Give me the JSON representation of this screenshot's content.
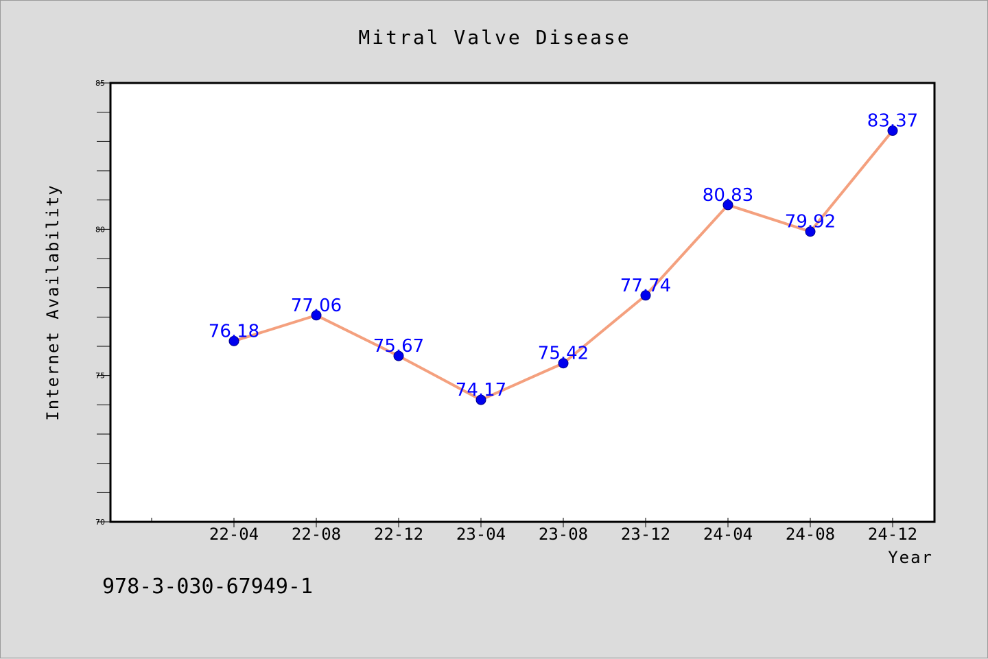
{
  "chart_data": {
    "type": "line",
    "title": "Mitral Valve Disease",
    "xlabel": "Year",
    "ylabel": "Internet Availability",
    "categories": [
      "22-04",
      "22-08",
      "22-12",
      "23-04",
      "23-08",
      "23-12",
      "24-04",
      "24-08",
      "24-12"
    ],
    "series": [
      {
        "values": [
          76.18,
          77.06,
          75.67,
          74.17,
          75.42,
          77.74,
          80.83,
          79.92,
          83.37
        ],
        "labels": [
          "76.18",
          "77.06",
          "75.67",
          "74.17",
          "75.42",
          "77.74",
          "80.83",
          "79.92",
          "83.37"
        ]
      }
    ],
    "ylim": [
      70,
      85
    ],
    "yticks": [
      70,
      75,
      80,
      85
    ],
    "ytick_labels": [
      "70",
      "75",
      "80",
      "85"
    ],
    "grid": false,
    "legend": "none",
    "colors": {
      "line": "#f4a07e",
      "marker": "#0000ee",
      "label": "#0000ff",
      "plot_background": "#ffffff",
      "page_background": "#dcdcdc"
    }
  },
  "caption": "978-3-030-67949-1"
}
